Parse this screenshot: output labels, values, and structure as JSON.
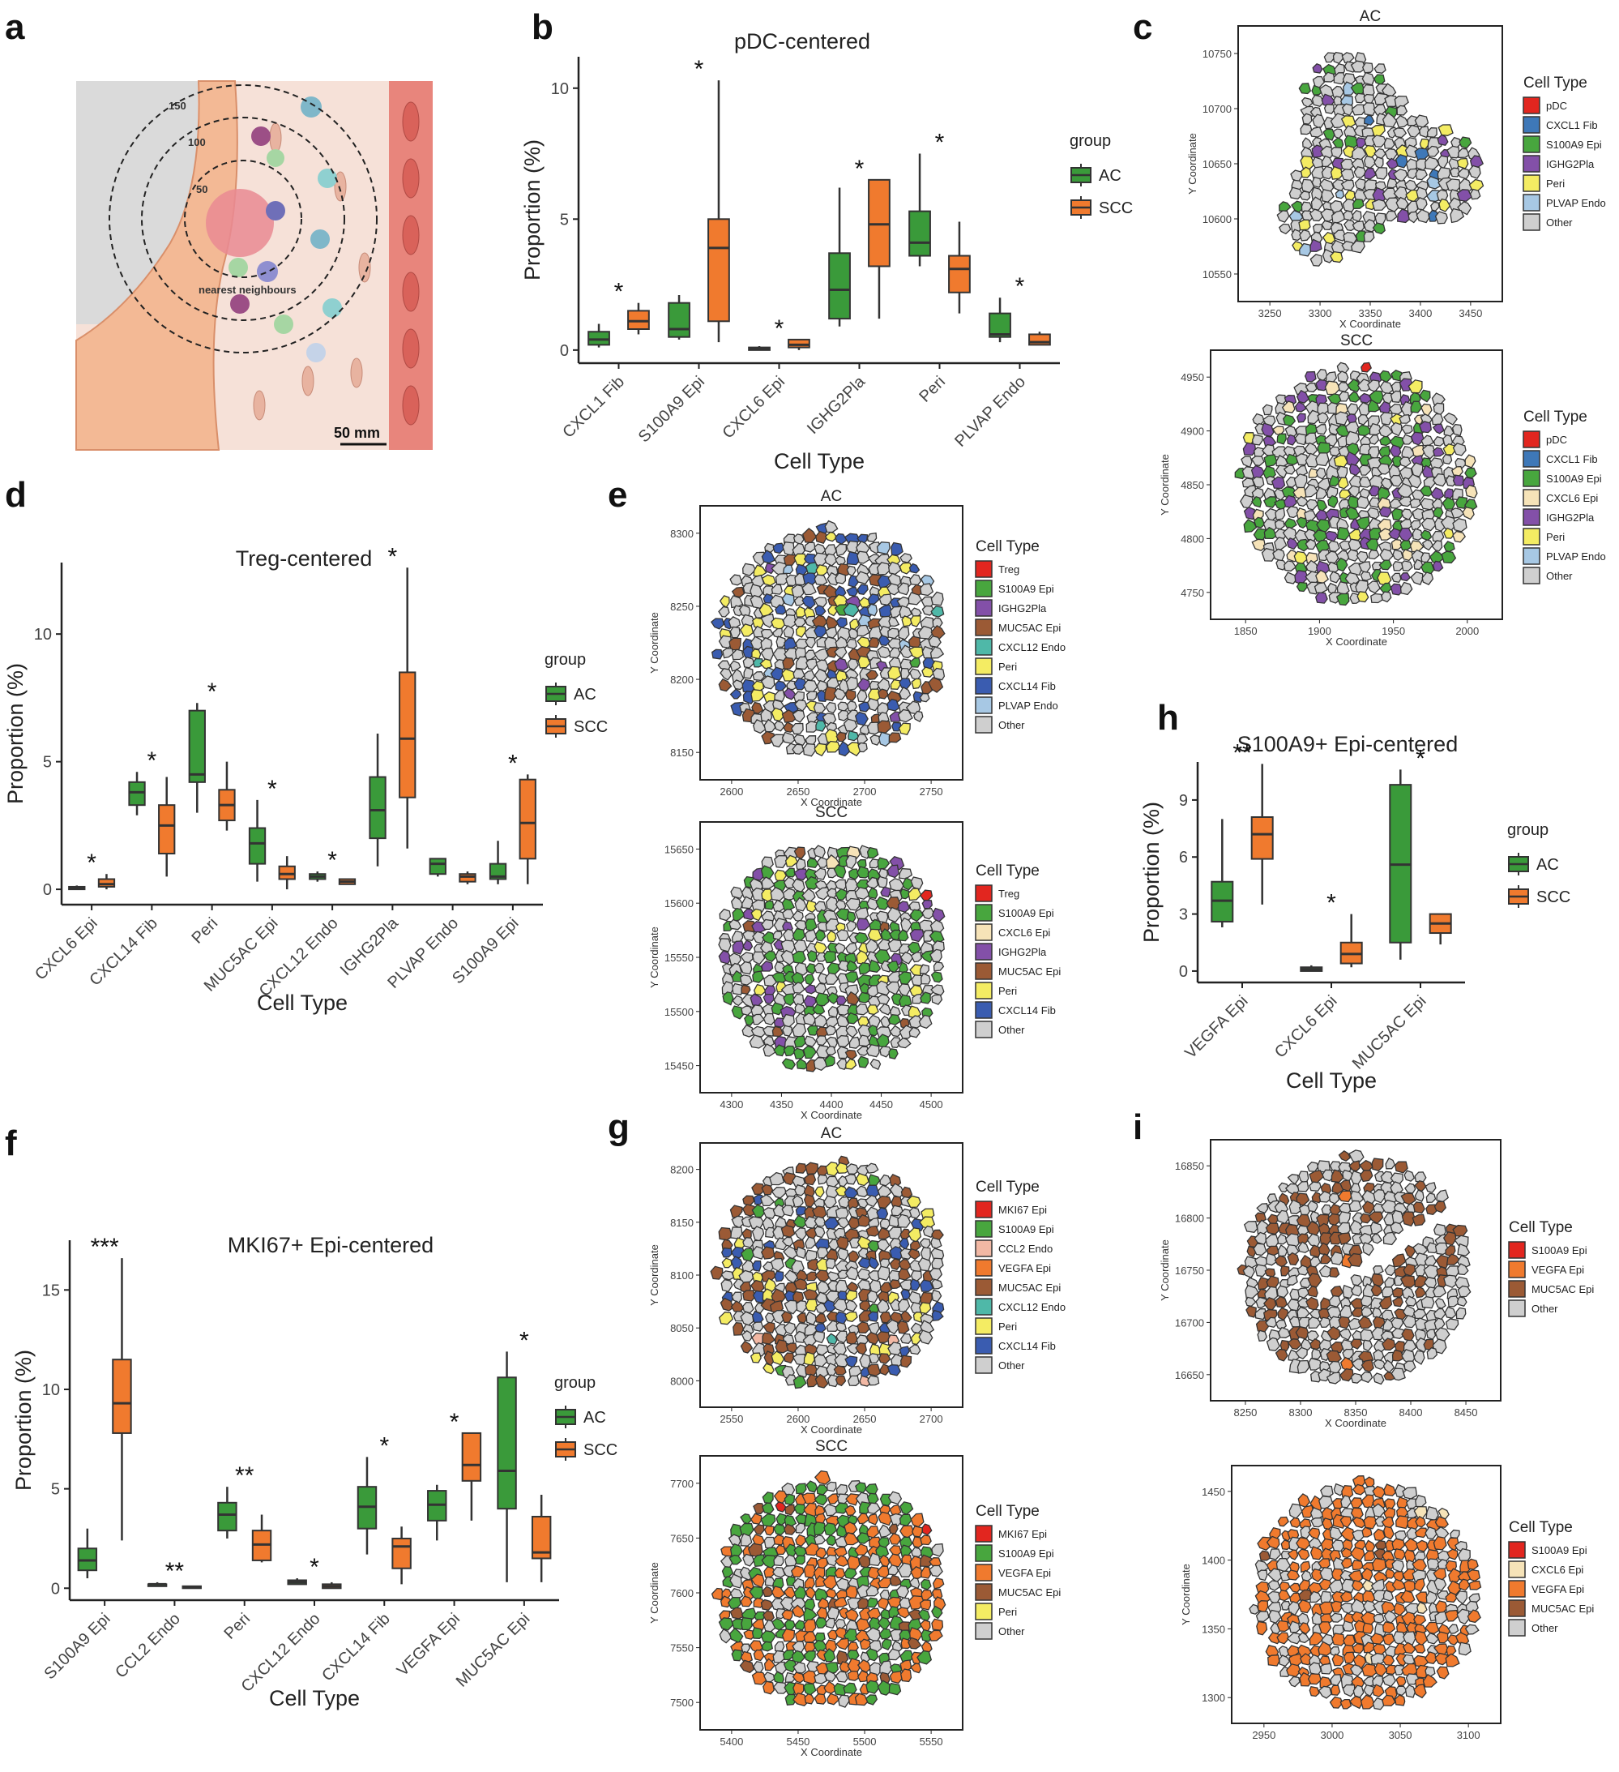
{
  "panel_labels": [
    "a",
    "b",
    "c",
    "d",
    "e",
    "f",
    "g",
    "h",
    "i"
  ],
  "colors": {
    "AC": "#3a9a3a",
    "SCC": "#f07a2e",
    "box_line": "#333333"
  },
  "illustration": {
    "rings": [
      "150",
      "100",
      "50"
    ],
    "caption": "nearest neighbours",
    "scale_bar": "50 mm"
  },
  "chart_data": [
    {
      "id": "b",
      "type": "box",
      "title": "pDC-centered",
      "xlabel": "Cell Type",
      "ylabel": "Proportion (%)",
      "ylim": [
        -0.5,
        11.2
      ],
      "yticks": [
        0,
        5,
        10
      ],
      "legend": {
        "title": "group",
        "items": [
          "AC",
          "SCC"
        ]
      },
      "categories": [
        "CXCL1 Fib",
        "S100A9 Epi",
        "CXCL6 Epi",
        "IGHG2Pla",
        "Peri",
        "PLVAP Endo"
      ],
      "sig": [
        "*",
        "*",
        "*",
        "*",
        "*",
        "*"
      ],
      "series": [
        {
          "name": "AC",
          "boxes": [
            [
              0.1,
              0.2,
              0.4,
              0.7,
              1.0
            ],
            [
              0.4,
              0.5,
              0.8,
              1.8,
              2.1
            ],
            [
              0.0,
              0.0,
              0.05,
              0.1,
              0.15
            ],
            [
              0.9,
              1.2,
              2.3,
              3.7,
              6.2
            ],
            [
              3.2,
              3.6,
              4.1,
              5.3,
              7.5
            ],
            [
              0.3,
              0.5,
              0.6,
              1.4,
              2.0
            ]
          ]
        },
        {
          "name": "SCC",
          "boxes": [
            [
              0.6,
              0.8,
              1.1,
              1.5,
              1.8
            ],
            [
              0.3,
              1.1,
              3.9,
              5.0,
              10.3
            ],
            [
              0.0,
              0.1,
              0.2,
              0.4,
              0.4
            ],
            [
              1.2,
              3.2,
              4.8,
              6.5,
              6.5
            ],
            [
              1.4,
              2.2,
              3.1,
              3.6,
              4.9
            ],
            [
              0.2,
              0.2,
              0.3,
              0.6,
              0.7
            ]
          ]
        }
      ]
    },
    {
      "id": "d",
      "type": "box",
      "title": "Treg-centered",
      "xlabel": "Cell Type",
      "ylabel": "Proportion (%)",
      "ylim": [
        -0.6,
        12.8
      ],
      "yticks": [
        0,
        5,
        10
      ],
      "legend": {
        "title": "group",
        "items": [
          "AC",
          "SCC"
        ]
      },
      "categories": [
        "CXCL6 Epi",
        "CXCL14 Fib",
        "Peri",
        "MUC5AC Epi",
        "CXCL12 Endo",
        "IGHG2Pla",
        "PLVAP Endo",
        "S100A9 Epi"
      ],
      "sig": [
        "*",
        "*",
        "*",
        "*",
        "*",
        "*",
        "",
        ""
      ],
      "sig_s": [
        "",
        "",
        "",
        "",
        "",
        "",
        "",
        "*"
      ],
      "series": [
        {
          "name": "AC",
          "boxes": [
            [
              0.0,
              0.0,
              0.05,
              0.1,
              0.15
            ],
            [
              2.9,
              3.3,
              3.8,
              4.2,
              4.6
            ],
            [
              3.0,
              4.2,
              4.5,
              7.0,
              7.3
            ],
            [
              0.3,
              1.0,
              1.8,
              2.4,
              3.5
            ],
            [
              0.3,
              0.4,
              0.5,
              0.6,
              0.7
            ],
            [
              0.9,
              2.0,
              3.1,
              4.4,
              6.1
            ],
            [
              0.5,
              0.6,
              1.0,
              1.2,
              1.2
            ],
            [
              0.2,
              0.4,
              0.5,
              1.0,
              1.9
            ]
          ]
        },
        {
          "name": "SCC",
          "boxes": [
            [
              0.0,
              0.1,
              0.2,
              0.4,
              0.6
            ],
            [
              0.5,
              1.4,
              2.5,
              3.3,
              4.4
            ],
            [
              2.3,
              2.7,
              3.3,
              3.9,
              5.0
            ],
            [
              0.0,
              0.4,
              0.6,
              0.9,
              1.3
            ],
            [
              0.2,
              0.2,
              0.3,
              0.4,
              0.4
            ],
            [
              1.6,
              3.6,
              5.9,
              8.5,
              12.6
            ],
            [
              0.2,
              0.3,
              0.5,
              0.6,
              0.7
            ],
            [
              0.2,
              1.2,
              2.6,
              4.3,
              4.5
            ]
          ]
        }
      ]
    },
    {
      "id": "f",
      "type": "box",
      "title": "MKI67+ Epi-centered",
      "xlabel": "Cell Type",
      "ylabel": "Proportion (%)",
      "ylim": [
        -0.6,
        17.5
      ],
      "yticks": [
        0,
        5,
        10,
        15
      ],
      "legend": {
        "title": "group",
        "items": [
          "AC",
          "SCC"
        ]
      },
      "categories": [
        "S100A9 Epi",
        "CCL2 Endo",
        "Peri",
        "CXCL12 Endo",
        "CXCL14 Fib",
        "VEGFA Epi",
        "MUC5AC Epi"
      ],
      "sig": [
        "***",
        "**",
        "**",
        "*",
        "*",
        "*",
        "*"
      ],
      "series": [
        {
          "name": "AC",
          "boxes": [
            [
              0.5,
              0.9,
              1.4,
              2.0,
              3.0
            ],
            [
              0.1,
              0.1,
              0.2,
              0.2,
              0.3
            ],
            [
              2.5,
              2.9,
              3.7,
              4.3,
              5.1
            ],
            [
              0.2,
              0.2,
              0.3,
              0.4,
              0.5
            ],
            [
              1.7,
              3.0,
              4.1,
              5.1,
              6.6
            ],
            [
              2.4,
              3.4,
              4.2,
              4.9,
              5.2
            ],
            [
              0.3,
              4.0,
              5.9,
              10.6,
              11.9
            ]
          ]
        },
        {
          "name": "SCC",
          "boxes": [
            [
              2.4,
              7.8,
              9.3,
              11.5,
              16.6
            ],
            [
              0.0,
              0.0,
              0.05,
              0.1,
              0.1
            ],
            [
              1.3,
              1.4,
              2.2,
              2.9,
              3.7
            ],
            [
              0.0,
              0.0,
              0.1,
              0.2,
              0.3
            ],
            [
              0.2,
              1.0,
              2.1,
              2.5,
              3.1
            ],
            [
              3.4,
              5.4,
              6.2,
              7.8,
              7.8
            ],
            [
              0.3,
              1.5,
              1.8,
              3.6,
              4.7
            ]
          ]
        }
      ]
    },
    {
      "id": "h",
      "type": "box",
      "title": "S100A9+ Epi-centered",
      "xlabel": "Cell Type",
      "ylabel": "Proportion (%)",
      "ylim": [
        -0.6,
        11.0
      ],
      "yticks": [
        0,
        3,
        6,
        9
      ],
      "legend": {
        "title": "group",
        "items": [
          "AC",
          "SCC"
        ]
      },
      "categories": [
        "VEGFA Epi",
        "CXCL6 Epi",
        "MUC5AC Epi"
      ],
      "sig": [
        "**",
        "*",
        "*"
      ],
      "series": [
        {
          "name": "AC",
          "boxes": [
            [
              2.3,
              2.6,
              3.7,
              4.7,
              8.0
            ],
            [
              0.0,
              0.0,
              0.1,
              0.2,
              0.3
            ],
            [
              0.6,
              1.5,
              5.6,
              9.8,
              10.6
            ]
          ]
        },
        {
          "name": "SCC",
          "boxes": [
            [
              3.5,
              5.9,
              7.2,
              8.1,
              10.9
            ],
            [
              0.2,
              0.4,
              0.9,
              1.5,
              3.0
            ],
            [
              1.4,
              2.0,
              2.5,
              3.0,
              3.0
            ]
          ]
        }
      ]
    }
  ],
  "maps": [
    {
      "id": "c1",
      "title": "AC",
      "xlabel": "X Coordinate",
      "ylabel": "Y Coordinate",
      "xticks": [
        "3250",
        "3300",
        "3350",
        "3400",
        "3450"
      ],
      "yticks": [
        "10750",
        "10700",
        "10650",
        "10600",
        "10550"
      ],
      "legend": {
        "title": "Cell Type",
        "items": [
          {
            "label": "pDC",
            "color": "#e2261f"
          },
          {
            "label": "CXCL1 Fib",
            "color": "#3e78b8"
          },
          {
            "label": "S100A9 Epi",
            "color": "#48a63e"
          },
          {
            "label": "IGHG2Pla",
            "color": "#8350a8"
          },
          {
            "label": "Peri",
            "color": "#f4ec63"
          },
          {
            "label": "PLVAP Endo",
            "color": "#a7c8e4"
          },
          {
            "label": "Other",
            "color": "#cfcfcf"
          }
        ]
      }
    },
    {
      "id": "c2",
      "title": "SCC",
      "xlabel": "X Coordinate",
      "ylabel": "Y Coordinate",
      "xticks": [
        "1850",
        "1900",
        "1950",
        "2000"
      ],
      "yticks": [
        "4950",
        "4900",
        "4850",
        "4800",
        "4750"
      ],
      "legend": {
        "title": "Cell Type",
        "items": [
          {
            "label": "pDC",
            "color": "#e2261f"
          },
          {
            "label": "CXCL1 Fib",
            "color": "#3e78b8"
          },
          {
            "label": "S100A9 Epi",
            "color": "#48a63e"
          },
          {
            "label": "CXCL6 Epi",
            "color": "#f6e3b8"
          },
          {
            "label": "IGHG2Pla",
            "color": "#8350a8"
          },
          {
            "label": "Peri",
            "color": "#f4ec63"
          },
          {
            "label": "PLVAP Endo",
            "color": "#a7c8e4"
          },
          {
            "label": "Other",
            "color": "#cfcfcf"
          }
        ]
      }
    },
    {
      "id": "e1",
      "title": "AC",
      "xlabel": "X Coordinate",
      "ylabel": "Y Coordinate",
      "xticks": [
        "2600",
        "2650",
        "2700",
        "2750"
      ],
      "yticks": [
        "8300",
        "8250",
        "8200",
        "8150"
      ],
      "legend": {
        "title": "Cell Type",
        "items": [
          {
            "label": "Treg",
            "color": "#e2261f"
          },
          {
            "label": "S100A9 Epi",
            "color": "#48a63e"
          },
          {
            "label": "IGHG2Pla",
            "color": "#8350a8"
          },
          {
            "label": "MUC5AC Epi",
            "color": "#9b5a35"
          },
          {
            "label": "CXCL12 Endo",
            "color": "#4fb8a8"
          },
          {
            "label": "Peri",
            "color": "#f4ec63"
          },
          {
            "label": "CXCL14 Fib",
            "color": "#3a5cb0"
          },
          {
            "label": "PLVAP Endo",
            "color": "#a7c8e4"
          },
          {
            "label": "Other",
            "color": "#cfcfcf"
          }
        ]
      }
    },
    {
      "id": "e2",
      "title": "SCC",
      "xlabel": "X Coordinate",
      "ylabel": "Y Coordinate",
      "xticks": [
        "4300",
        "4350",
        "4400",
        "4450",
        "4500"
      ],
      "yticks": [
        "15650",
        "15600",
        "15550",
        "15500",
        "15450"
      ],
      "legend": {
        "title": "Cell Type",
        "items": [
          {
            "label": "Treg",
            "color": "#e2261f"
          },
          {
            "label": "S100A9 Epi",
            "color": "#48a63e"
          },
          {
            "label": "CXCL6 Epi",
            "color": "#f6e3b8"
          },
          {
            "label": "IGHG2Pla",
            "color": "#8350a8"
          },
          {
            "label": "MUC5AC Epi",
            "color": "#9b5a35"
          },
          {
            "label": "Peri",
            "color": "#f4ec63"
          },
          {
            "label": "CXCL14 Fib",
            "color": "#3a5cb0"
          },
          {
            "label": "Other",
            "color": "#cfcfcf"
          }
        ]
      }
    },
    {
      "id": "g1",
      "title": "AC",
      "xlabel": "X Coordinate",
      "ylabel": "Y Coordinate",
      "xticks": [
        "2550",
        "2600",
        "2650",
        "2700"
      ],
      "yticks": [
        "8200",
        "8150",
        "8100",
        "8050",
        "8000"
      ],
      "legend": {
        "title": "Cell Type",
        "items": [
          {
            "label": "MKI67 Epi",
            "color": "#e2261f"
          },
          {
            "label": "S100A9 Epi",
            "color": "#48a63e"
          },
          {
            "label": "CCL2 Endo",
            "color": "#f2b8a4"
          },
          {
            "label": "VEGFA Epi",
            "color": "#f07a2e"
          },
          {
            "label": "MUC5AC Epi",
            "color": "#9b5a35"
          },
          {
            "label": "CXCL12 Endo",
            "color": "#4fb8a8"
          },
          {
            "label": "Peri",
            "color": "#f4ec63"
          },
          {
            "label": "CXCL14 Fib",
            "color": "#3a5cb0"
          },
          {
            "label": "Other",
            "color": "#cfcfcf"
          }
        ]
      }
    },
    {
      "id": "g2",
      "title": "SCC",
      "xlabel": "X Coordinate",
      "ylabel": "Y Coordinate",
      "xticks": [
        "5400",
        "5450",
        "5500",
        "5550"
      ],
      "yticks": [
        "7700",
        "7650",
        "7600",
        "7550",
        "7500"
      ],
      "legend": {
        "title": "Cell Type",
        "items": [
          {
            "label": "MKI67 Epi",
            "color": "#e2261f"
          },
          {
            "label": "S100A9 Epi",
            "color": "#48a63e"
          },
          {
            "label": "VEGFA Epi",
            "color": "#f07a2e"
          },
          {
            "label": "MUC5AC Epi",
            "color": "#9b5a35"
          },
          {
            "label": "Peri",
            "color": "#f4ec63"
          },
          {
            "label": "Other",
            "color": "#cfcfcf"
          }
        ]
      }
    },
    {
      "id": "i1",
      "title": "",
      "xlabel": "X Coordinate",
      "ylabel": "Y Coordinate",
      "xticks": [
        "8250",
        "8300",
        "8350",
        "8400",
        "8450"
      ],
      "yticks": [
        "16850",
        "16800",
        "16750",
        "16700",
        "16650"
      ],
      "legend": {
        "title": "Cell Type",
        "items": [
          {
            "label": "S100A9 Epi",
            "color": "#e2261f"
          },
          {
            "label": "VEGFA Epi",
            "color": "#f07a2e"
          },
          {
            "label": "MUC5AC Epi",
            "color": "#9b5a35"
          },
          {
            "label": "Other",
            "color": "#cfcfcf"
          }
        ]
      }
    },
    {
      "id": "i2",
      "title": "",
      "xlabel": "",
      "ylabel": "Y Coordinate",
      "xticks": [
        "2950",
        "3000",
        "3050",
        "3100"
      ],
      "yticks": [
        "1450",
        "1400",
        "1350",
        "1300"
      ],
      "legend": {
        "title": "Cell Type",
        "items": [
          {
            "label": "S100A9 Epi",
            "color": "#e2261f"
          },
          {
            "label": "CXCL6 Epi",
            "color": "#f6e3b8"
          },
          {
            "label": "VEGFA Epi",
            "color": "#f07a2e"
          },
          {
            "label": "MUC5AC Epi",
            "color": "#9b5a35"
          },
          {
            "label": "Other",
            "color": "#cfcfcf"
          }
        ]
      }
    }
  ]
}
